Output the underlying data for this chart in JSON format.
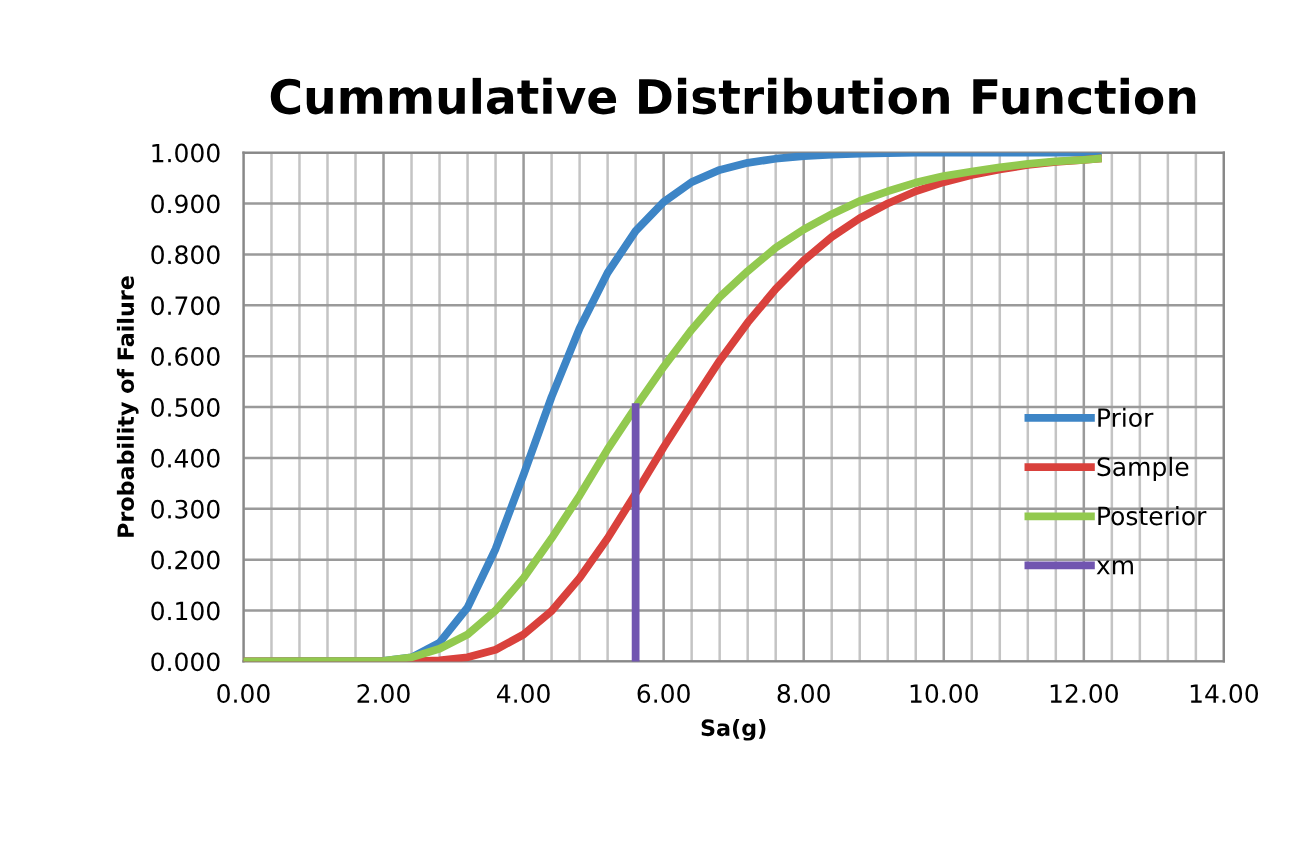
{
  "chart_data": {
    "type": "line",
    "title": "Cummulative Distribution Function",
    "xlabel": "Sa(g)",
    "ylabel": "Probability of Failure",
    "series": [
      {
        "name": "Prior",
        "color": "#3d85c6",
        "x": [
          0,
          2.0,
          2.4,
          2.8,
          3.2,
          3.6,
          4.0,
          4.4,
          4.8,
          5.2,
          5.6,
          6.0,
          6.4,
          6.8,
          7.2,
          7.6,
          8.0,
          8.4,
          8.8,
          9.2,
          9.6,
          10.0,
          10.4,
          10.8,
          11.2,
          11.6,
          12.0,
          12.2
        ],
        "values": [
          0,
          0.001,
          0.008,
          0.037,
          0.106,
          0.221,
          0.367,
          0.52,
          0.655,
          0.764,
          0.846,
          0.903,
          0.942,
          0.966,
          0.98,
          0.988,
          0.993,
          0.996,
          0.998,
          0.999,
          1.0,
          1.0,
          1.0,
          1.0,
          1.0,
          1.0,
          1.0,
          1.0
        ]
      },
      {
        "name": "Sample",
        "color": "#d9413c",
        "x": [
          0,
          2.0,
          2.4,
          2.8,
          3.2,
          3.6,
          4.0,
          4.4,
          4.8,
          5.2,
          5.6,
          6.0,
          6.4,
          6.8,
          7.2,
          7.6,
          8.0,
          8.4,
          8.8,
          9.2,
          9.6,
          10.0,
          10.4,
          10.8,
          11.2,
          11.6,
          12.0,
          12.2
        ],
        "values": [
          0,
          0,
          0,
          0.002,
          0.008,
          0.023,
          0.053,
          0.099,
          0.164,
          0.242,
          0.33,
          0.421,
          0.507,
          0.591,
          0.666,
          0.732,
          0.788,
          0.834,
          0.871,
          0.9,
          0.924,
          0.942,
          0.956,
          0.967,
          0.976,
          0.982,
          0.986,
          0.988
        ]
      },
      {
        "name": "Posterior",
        "color": "#92c94f",
        "x": [
          0,
          2.0,
          2.4,
          2.8,
          3.2,
          3.6,
          4.0,
          4.4,
          4.8,
          5.2,
          5.6,
          6.0,
          6.4,
          6.8,
          7.2,
          7.6,
          8.0,
          8.4,
          8.8,
          9.2,
          9.6,
          10.0,
          10.4,
          10.8,
          11.2,
          11.6,
          12.0,
          12.2
        ],
        "values": [
          0,
          0.001,
          0.008,
          0.025,
          0.053,
          0.1,
          0.164,
          0.242,
          0.326,
          0.417,
          0.5,
          0.579,
          0.652,
          0.716,
          0.767,
          0.813,
          0.849,
          0.879,
          0.905,
          0.924,
          0.941,
          0.954,
          0.963,
          0.971,
          0.978,
          0.983,
          0.986,
          0.988
        ]
      },
      {
        "name": "xm",
        "color": "#7155b0",
        "x": [
          5.6,
          5.6
        ],
        "values": [
          0,
          0.5
        ]
      }
    ],
    "xlim": [
      0,
      14
    ],
    "ylim": [
      0,
      1
    ],
    "xticks": [
      {
        "value": 0,
        "label": "0.00"
      },
      {
        "value": 0.4,
        "label": null
      },
      {
        "value": 0.8,
        "label": null
      },
      {
        "value": 1.2,
        "label": null
      },
      {
        "value": 1.6,
        "label": null
      },
      {
        "value": 2,
        "label": "2.00"
      },
      {
        "value": 2.4,
        "label": null
      },
      {
        "value": 2.8,
        "label": null
      },
      {
        "value": 3.2,
        "label": null
      },
      {
        "value": 3.6,
        "label": null
      },
      {
        "value": 4,
        "label": "4.00"
      },
      {
        "value": 4.4,
        "label": null
      },
      {
        "value": 4.8,
        "label": null
      },
      {
        "value": 5.2,
        "label": null
      },
      {
        "value": 5.6,
        "label": null
      },
      {
        "value": 6,
        "label": "6.00"
      },
      {
        "value": 6.4,
        "label": null
      },
      {
        "value": 6.8,
        "label": null
      },
      {
        "value": 7.2,
        "label": null
      },
      {
        "value": 7.6,
        "label": null
      },
      {
        "value": 8,
        "label": "8.00"
      },
      {
        "value": 8.4,
        "label": null
      },
      {
        "value": 8.8,
        "label": null
      },
      {
        "value": 9.2,
        "label": null
      },
      {
        "value": 9.6,
        "label": null
      },
      {
        "value": 10,
        "label": "10.00"
      },
      {
        "value": 10.4,
        "label": null
      },
      {
        "value": 10.8,
        "label": null
      },
      {
        "value": 11.2,
        "label": null
      },
      {
        "value": 11.6,
        "label": null
      },
      {
        "value": 12,
        "label": "12.00"
      },
      {
        "value": 12.4,
        "label": null
      },
      {
        "value": 12.8,
        "label": null
      },
      {
        "value": 13.2,
        "label": null
      },
      {
        "value": 13.6,
        "label": null
      },
      {
        "value": 14,
        "label": "14.00"
      }
    ],
    "yticks": [
      {
        "value": 0,
        "label": "0.000"
      },
      {
        "value": 0.1,
        "label": "0.100"
      },
      {
        "value": 0.2,
        "label": "0.200"
      },
      {
        "value": 0.3,
        "label": "0.300"
      },
      {
        "value": 0.4,
        "label": "0.400"
      },
      {
        "value": 0.5,
        "label": "0.500"
      },
      {
        "value": 0.6,
        "label": "0.600"
      },
      {
        "value": 0.7,
        "label": "0.700"
      },
      {
        "value": 0.8,
        "label": "0.800"
      },
      {
        "value": 0.9,
        "label": "0.900"
      },
      {
        "value": 1.0,
        "label": "1.000"
      }
    ],
    "grid": true,
    "legend": "right",
    "marker": "none",
    "line_style": "solid"
  }
}
